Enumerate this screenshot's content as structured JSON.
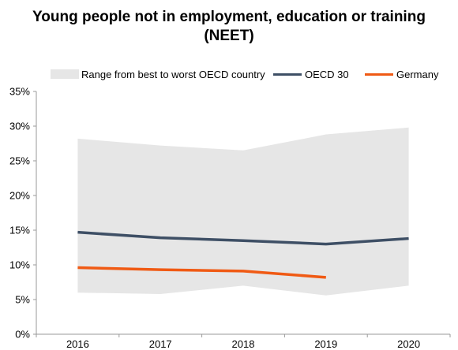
{
  "chart_data": {
    "type": "line",
    "title": "Young people not in employment, education or training (NEET)",
    "x": [
      "2016",
      "2017",
      "2018",
      "2019",
      "2020"
    ],
    "ylim": [
      0,
      35
    ],
    "yticks": [
      "0%",
      "5%",
      "10%",
      "15%",
      "20%",
      "25%",
      "30%",
      "35%"
    ],
    "band": {
      "name": "Range from best to worst OECD country",
      "color": "#e6e6e6",
      "upper": [
        28.2,
        27.2,
        26.5,
        28.8,
        29.8
      ],
      "lower": [
        6.0,
        5.8,
        7.0,
        5.6,
        7.0
      ]
    },
    "series": [
      {
        "name": "OECD 30",
        "color": "#3e4f65",
        "values": [
          14.7,
          13.9,
          13.5,
          13.0,
          13.8
        ]
      },
      {
        "name": "Germany",
        "color": "#f05a14",
        "values": [
          9.6,
          9.3,
          9.1,
          8.2,
          null
        ]
      }
    ],
    "legend_position": "top"
  }
}
